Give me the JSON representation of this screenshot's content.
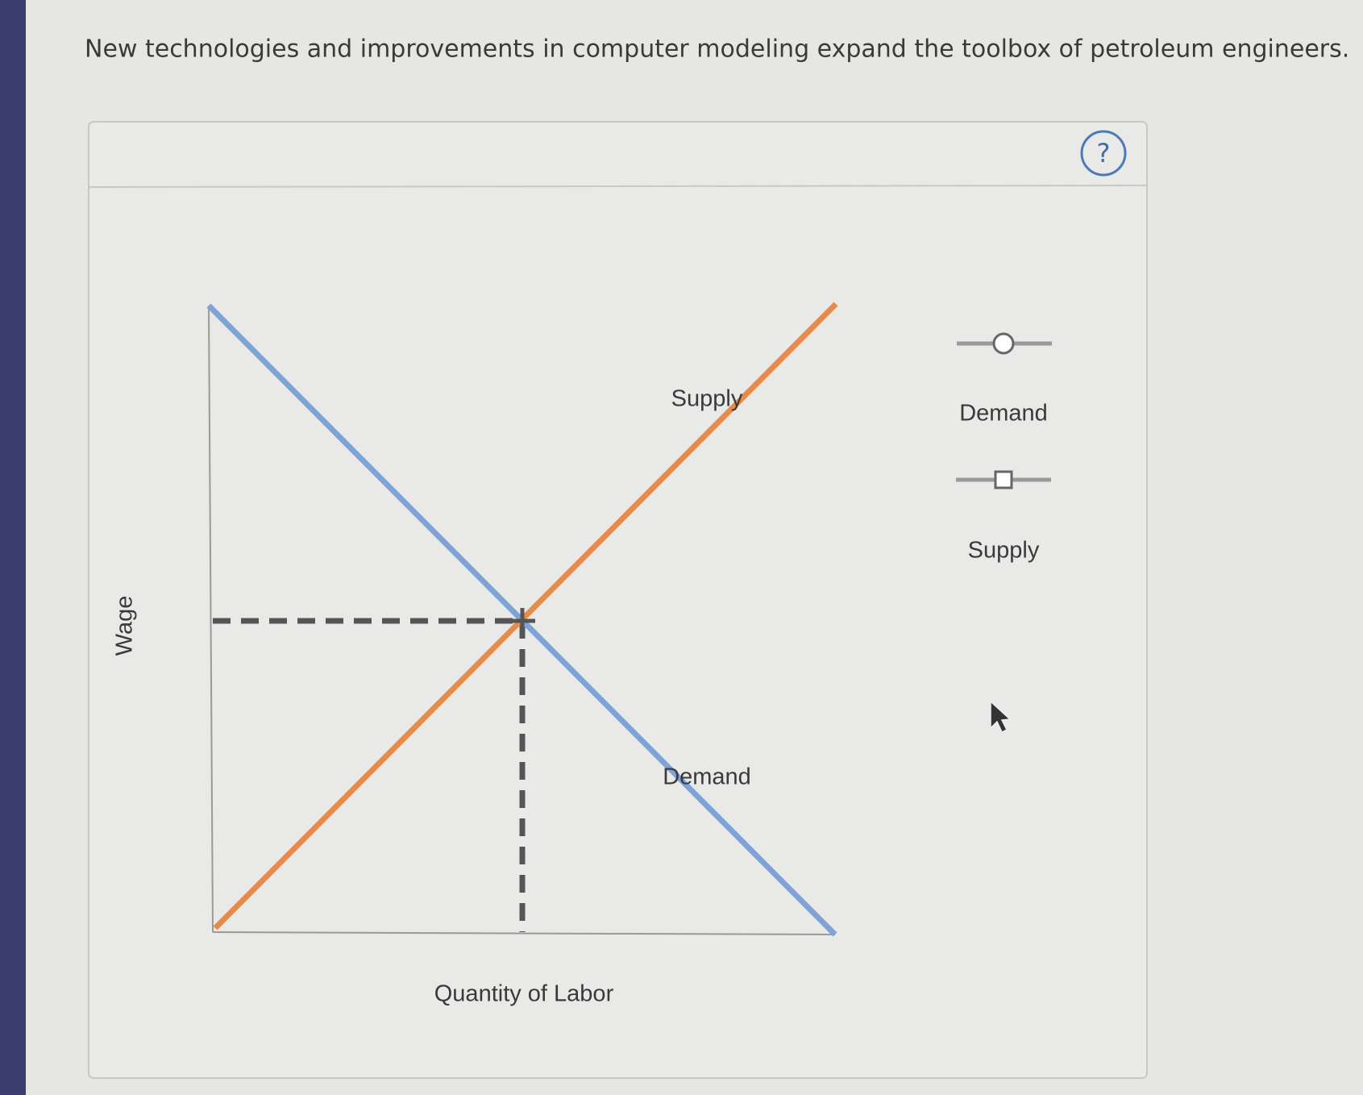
{
  "question": "New technologies and improvements in computer modeling expand the toolbox of petroleum engineers.",
  "help_button": "?",
  "graph": {
    "y_axis_label": "Wage",
    "x_axis_label": "Quantity of Labor",
    "supply_label": "Supply",
    "demand_label": "Demand"
  },
  "palette": {
    "items": [
      {
        "label": "Demand"
      },
      {
        "label": "Supply"
      }
    ]
  }
}
